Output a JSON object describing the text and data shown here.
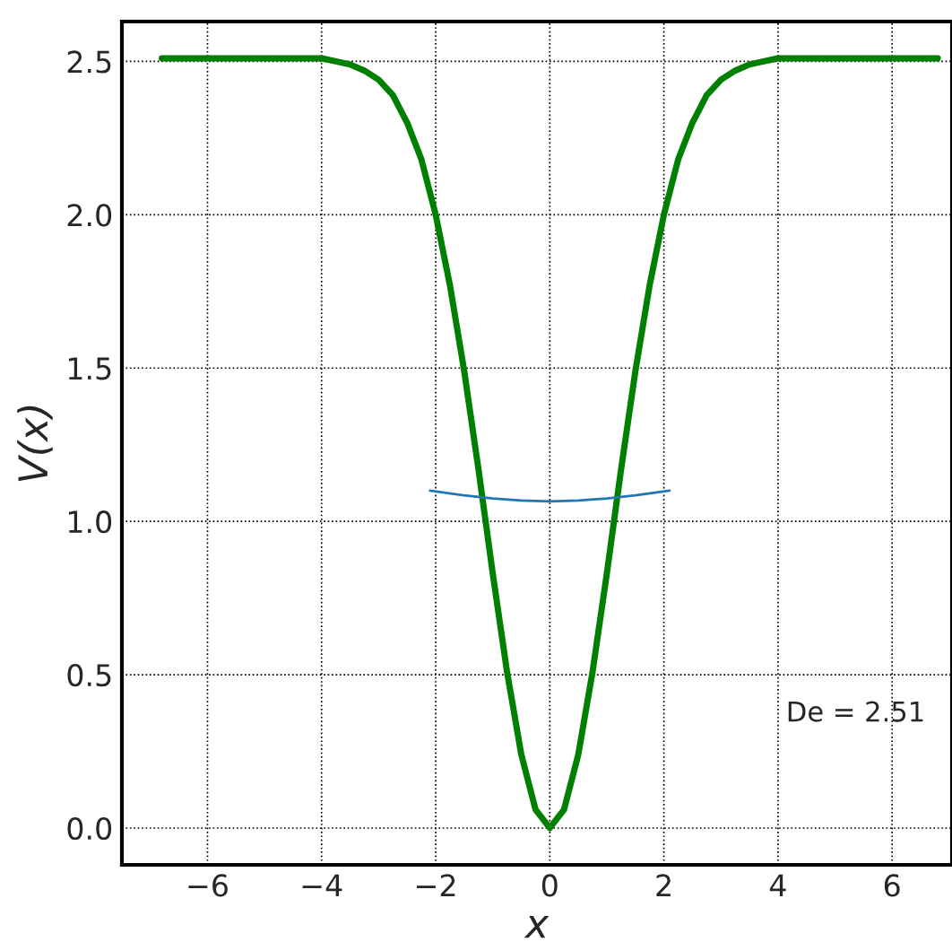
{
  "chart_data": {
    "type": "line",
    "xlabel": "x",
    "ylabel": "V(x)",
    "xlim": [
      -7.5,
      7.05
    ],
    "ylim": [
      -0.12,
      2.63
    ],
    "xticks": [
      {
        "value": -6,
        "label": "−6"
      },
      {
        "value": -4,
        "label": "−4"
      },
      {
        "value": -2,
        "label": "−2"
      },
      0,
      2,
      4,
      6
    ],
    "yticks": [
      {
        "value": 0,
        "label": "0.0"
      },
      0.5,
      {
        "value": 1,
        "label": "1.0"
      },
      1.5,
      {
        "value": 2,
        "label": "2.0"
      },
      2.5
    ],
    "grid": true,
    "line_style": "solid",
    "marker": "none",
    "series": [
      {
        "color": "#008000",
        "x": [
          -6.8,
          -5,
          -4.5,
          -4,
          -3.75,
          -3.5,
          -3.25,
          -3,
          -2.75,
          -2.5,
          -2.25,
          -2,
          -1.75,
          -1.5,
          -1.25,
          -1,
          -0.75,
          -0.5,
          -0.25,
          0,
          0.25,
          0.5,
          0.75,
          1,
          1.25,
          1.5,
          1.75,
          2,
          2.25,
          2.5,
          2.75,
          3,
          3.25,
          3.5,
          3.75,
          4,
          4.5,
          5,
          6.8
        ],
        "values": [
          2.51,
          2.51,
          2.51,
          2.51,
          2.5,
          2.49,
          2.47,
          2.44,
          2.39,
          2.3,
          2.18,
          2.0,
          1.77,
          1.49,
          1.17,
          0.83,
          0.51,
          0.24,
          0.06,
          0,
          0.06,
          0.24,
          0.51,
          0.83,
          1.17,
          1.49,
          1.77,
          2.0,
          2.18,
          2.3,
          2.39,
          2.44,
          2.47,
          2.49,
          2.5,
          2.51,
          2.51,
          2.51,
          2.51
        ]
      },
      {
        "color": "#1f77b4",
        "x": [
          -2.1,
          -1.5,
          -1,
          -0.5,
          0,
          0.5,
          1,
          1.5,
          2.1
        ],
        "values": [
          1.1,
          1.085,
          1.075,
          1.068,
          1.065,
          1.068,
          1.075,
          1.085,
          1.1
        ]
      }
    ],
    "annotations": [
      "De = 2.51"
    ]
  }
}
